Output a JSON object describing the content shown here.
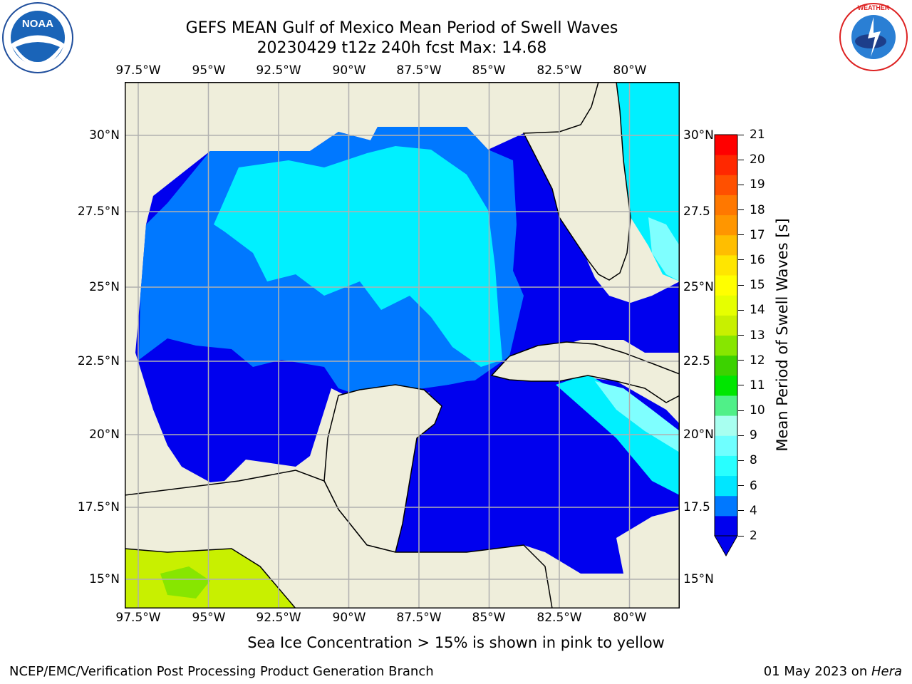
{
  "title": {
    "line1": "GEFS MEAN Gulf of Mexico Mean Period of Swell Waves",
    "line2": "20230429 t12z 240h fcst   Max: 14.68"
  },
  "axes": {
    "lon_labels_top": [
      "97.5°W",
      "95°W",
      "92.5°W",
      "90°W",
      "87.5°W",
      "85°W",
      "82.5°W",
      "80°W"
    ],
    "lon_labels_bottom": [
      "97.5°W",
      "95°W",
      "92.5°W",
      "90°W",
      "87.5°W",
      "85°W",
      "82.5°W",
      "80°W"
    ],
    "lat_labels_left": [
      "30°N",
      "27.5°N",
      "25°N",
      "22.5°N",
      "20°N",
      "17.5°N",
      "15°N"
    ],
    "lat_labels_right": [
      "30°N",
      "27.5",
      "25°N",
      "22.5",
      "20°N",
      "17.5",
      "15°N"
    ]
  },
  "colorbar": {
    "label": "Mean Period of Swell Waves [s]",
    "ticks": [
      "21",
      "20",
      "19",
      "18",
      "17",
      "16",
      "15",
      "14",
      "13",
      "12",
      "11",
      "10",
      "9",
      "8",
      "6",
      "4",
      "2"
    ],
    "colors": [
      "#0000ee",
      "#0078ff",
      "#00e6ff",
      "#28ffff",
      "#6fffff",
      "#a8fff0",
      "#50f088",
      "#00e600",
      "#3cd200",
      "#87e600",
      "#c8f000",
      "#e6ff00",
      "#ffff00",
      "#ffe600",
      "#ffbe00",
      "#ff9600",
      "#ff7800",
      "#ff5000",
      "#ff2800",
      "#ff0000"
    ]
  },
  "map": {
    "land_color": "#efeedb",
    "region": "Gulf of Mexico"
  },
  "logos": {
    "left": "NOAA",
    "right": "NATIONAL WEATHER SERVICE"
  },
  "note": "Sea Ice Concentration > 15% is shown in pink to yellow",
  "footer": {
    "left": "NCEP/EMC/Verification Post Processing Product Generation Branch",
    "right_prefix": "01 May 2023 on ",
    "right_machine": "Hera"
  }
}
